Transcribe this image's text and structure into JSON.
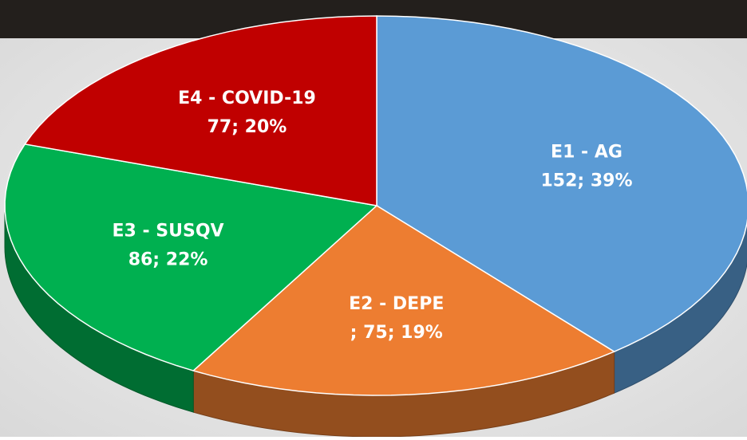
{
  "chart_data": {
    "type": "pie",
    "categories": [
      "E1 - AG",
      "E2 - DEPE",
      "E3 - SUSQV",
      "E4 - COVID-19"
    ],
    "values": [
      152,
      75,
      86,
      77
    ],
    "value_labels": [
      "152; 39%",
      "; 75; 19%",
      "86; 22%",
      "77; 20%"
    ],
    "colors": [
      "#5b9bd5",
      "#ed7d31",
      "#00b050",
      "#c00000"
    ]
  }
}
